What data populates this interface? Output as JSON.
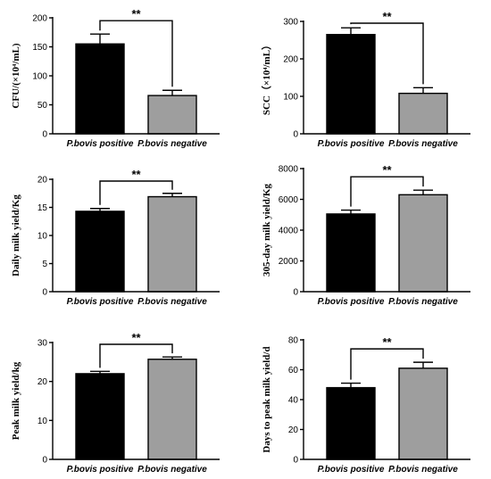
{
  "colors": {
    "positive": "#000000",
    "negative": "#9e9e9e"
  },
  "chart_data": [
    {
      "type": "bar",
      "categories": [
        "P.bovis positive",
        "P.bovis negative"
      ],
      "values": [
        155,
        66
      ],
      "errors": [
        17,
        9
      ],
      "ylabel": "CFU/(×10⁴/mL)",
      "ylim": [
        0,
        200
      ],
      "yticks": [
        0,
        50,
        100,
        150,
        200
      ],
      "significance": "**"
    },
    {
      "type": "bar",
      "categories": [
        "P.bovis positive",
        "P.bovis negative"
      ],
      "values": [
        265,
        108
      ],
      "errors": [
        18,
        15
      ],
      "ylabel": "SCC（×10⁴/mL）",
      "ylim": [
        0,
        300
      ],
      "yticks": [
        0,
        100,
        200,
        300
      ],
      "significance": "**"
    },
    {
      "type": "bar",
      "categories": [
        "P.bovis positive",
        "P.bovis negative"
      ],
      "values": [
        14.3,
        16.9
      ],
      "errors": [
        0.5,
        0.6
      ],
      "ylabel": "Daily milk yield/Kg",
      "ylim": [
        0,
        20
      ],
      "yticks": [
        0,
        5,
        10,
        15,
        20
      ],
      "significance": "**"
    },
    {
      "type": "bar",
      "categories": [
        "P.bovis positive",
        "P.bovis negative"
      ],
      "values": [
        5050,
        6300
      ],
      "errors": [
        250,
        300
      ],
      "ylabel": "305-day milk yield/Kg",
      "ylim": [
        0,
        8000
      ],
      "yticks": [
        0,
        2000,
        4000,
        6000,
        8000
      ],
      "significance": "**"
    },
    {
      "type": "bar",
      "categories": [
        "P.bovis positive",
        "P.bovis negative"
      ],
      "values": [
        22.0,
        25.7
      ],
      "errors": [
        0.6,
        0.6
      ],
      "ylabel": "Peak milk yield/kg",
      "ylim": [
        0,
        30
      ],
      "yticks": [
        0,
        10,
        20,
        30
      ],
      "significance": "**"
    },
    {
      "type": "bar",
      "categories": [
        "P.bovis positive",
        "P.bovis negative"
      ],
      "values": [
        48,
        61
      ],
      "errors": [
        3,
        4
      ],
      "ylabel": "Days to peak milk yield/d",
      "ylim": [
        0,
        80
      ],
      "yticks": [
        0,
        20,
        40,
        60,
        80
      ],
      "significance": "**"
    }
  ]
}
